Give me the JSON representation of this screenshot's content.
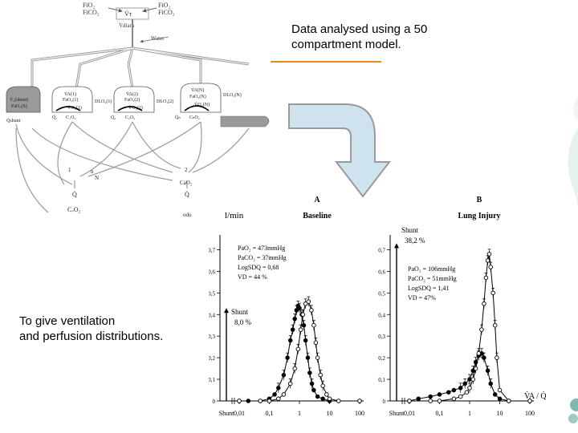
{
  "slide": {
    "caption_top": [
      "Data analysed using a 50",
      "compartment model."
    ],
    "caption_bottom": [
      "To give ventilation",
      "and perfusion distributions."
    ]
  },
  "diagram": {
    "top_left_labels": [
      "FiO₂",
      "FiCO₂"
    ],
    "top_right_labels": [
      "FiO₂",
      "FiCO₂"
    ],
    "vt_label": "V̇ᴛ",
    "vdiam_label": "V̇diam",
    "water_label": "Water",
    "comp1_labels": [
      "V̇A(1)",
      "FaO₂(1)",
      "V̇O₂(1)",
      "DLO₂(1)"
    ],
    "comp2_labels": [
      "V̇A(2)",
      "FaO₂(2)",
      "V̇O₂(2)",
      "DLO₂(2)"
    ],
    "comp3_labels": [
      "V̇A(N)",
      "FaO₂(N)",
      "V̇O₂(N)",
      "DLO₂(N)"
    ],
    "shunt_box_labels": [
      "V̇₂(shunt)",
      "FaO₂(S)"
    ],
    "q_labels": [
      "Q̇₁",
      "Q̇₂",
      "Q̇ₙ"
    ],
    "co2_labels": [
      "C₁O₂",
      "C₂O₂",
      "CₙO₂"
    ],
    "qshunt_label": "Q̇shunt",
    "qin_labels": [
      "Q̇",
      "CᵥO₂"
    ],
    "qout_labels": [
      "Q̇",
      "CaO₂",
      "odo"
    ],
    "node_labels": [
      "1",
      "2",
      "n",
      "N"
    ]
  },
  "figure": {
    "y_unit": "l/min",
    "x_unit": "V̇A / Q̇",
    "shunt_tick": "Shunt",
    "x_ticks": [
      "0,01",
      "0,1",
      "1",
      "10",
      "100"
    ],
    "y_ticks": [
      "0",
      "0,1",
      "0,2",
      "0,3",
      "0,4",
      "0,5",
      "0,6",
      "0,7"
    ]
  },
  "chart_data": [
    {
      "type": "line",
      "panel": "A",
      "title": "Baseline",
      "ylabel": "l/min",
      "x_scale": "log",
      "ylim": [
        0,
        0.75
      ],
      "annotations": [
        "PaO₂ = 473mmHg",
        "PaCO₂ = 37mmHg",
        "LogSDQ = 0,68",
        "VD = 44 %"
      ],
      "shunt_label": [
        "Shunt",
        "8,0 %"
      ],
      "shunt_value": 0.43,
      "series": [
        {
          "marker": "filled",
          "x": [
            0.01,
            0.02,
            0.05,
            0.1,
            0.15,
            0.2,
            0.3,
            0.4,
            0.5,
            0.6,
            0.7,
            0.8,
            0.9,
            1.0,
            1.2,
            1.4,
            1.6,
            1.9,
            2.2,
            2.6,
            3,
            4,
            6,
            10,
            100
          ],
          "y": [
            0,
            0,
            0,
            0.01,
            0.03,
            0.06,
            0.12,
            0.2,
            0.28,
            0.33,
            0.38,
            0.42,
            0.44,
            0.43,
            0.4,
            0.35,
            0.28,
            0.2,
            0.13,
            0.08,
            0.05,
            0.02,
            0.01,
            0,
            0
          ]
        },
        {
          "marker": "open",
          "x": [
            0.01,
            0.05,
            0.1,
            0.2,
            0.3,
            0.5,
            0.7,
            0.9,
            1.1,
            1.3,
            1.6,
            2.0,
            2.5,
            3,
            3.5,
            4,
            5,
            6,
            8,
            10,
            20,
            100
          ],
          "y": [
            0,
            0,
            0,
            0.01,
            0.03,
            0.08,
            0.15,
            0.24,
            0.33,
            0.4,
            0.45,
            0.46,
            0.42,
            0.35,
            0.27,
            0.2,
            0.12,
            0.07,
            0.03,
            0.01,
            0,
            0
          ]
        }
      ]
    },
    {
      "type": "line",
      "panel": "B",
      "title": "Lung Injury",
      "x_scale": "log",
      "ylim": [
        0,
        0.75
      ],
      "annotations": [
        "PaO₂ = 106mmHg",
        "PaCO₂ = 51mmHg",
        "LogSDQ = 1,41",
        "VD = 47%"
      ],
      "shunt_label": [
        "Shunt",
        "38,2 %"
      ],
      "shunt_value": 0.73,
      "series": [
        {
          "marker": "filled",
          "x": [
            0.01,
            0.02,
            0.05,
            0.1,
            0.2,
            0.3,
            0.5,
            0.7,
            1.0,
            1.3,
            1.6,
            2.0,
            2.5,
            3,
            4,
            5,
            7,
            10,
            20,
            100
          ],
          "y": [
            0,
            0.01,
            0.02,
            0.03,
            0.04,
            0.05,
            0.06,
            0.08,
            0.1,
            0.14,
            0.18,
            0.21,
            0.22,
            0.2,
            0.14,
            0.08,
            0.03,
            0.01,
            0,
            0
          ]
        },
        {
          "marker": "open",
          "x": [
            0.01,
            0.05,
            0.1,
            0.3,
            0.5,
            0.8,
            1.0,
            1.3,
            1.6,
            2.0,
            2.5,
            3,
            3.5,
            4,
            4.5,
            5,
            6,
            7,
            8,
            10,
            20,
            100
          ],
          "y": [
            0,
            0,
            0,
            0.01,
            0.02,
            0.04,
            0.06,
            0.1,
            0.15,
            0.22,
            0.33,
            0.45,
            0.57,
            0.65,
            0.68,
            0.62,
            0.5,
            0.35,
            0.2,
            0.05,
            0,
            0
          ]
        }
      ]
    }
  ]
}
